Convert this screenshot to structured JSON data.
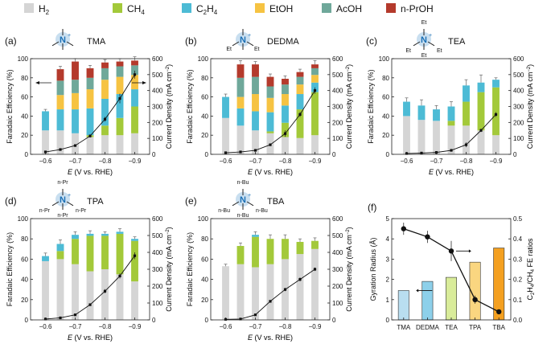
{
  "legend": [
    {
      "key": "h2",
      "main": "H",
      "sub": "2",
      "tail": "",
      "color": "#d5d5d5"
    },
    {
      "key": "ch4",
      "main": "CH",
      "sub": "4",
      "tail": "",
      "color": "#a3c93a"
    },
    {
      "key": "c2h4",
      "main": "C",
      "sub": "2",
      "tail": "H",
      "sub2": "4",
      "color": "#4dbbd5"
    },
    {
      "key": "etoh",
      "main": "EtOH",
      "sub": "",
      "tail": "",
      "color": "#f6c342"
    },
    {
      "key": "acoh",
      "main": "AcOH",
      "sub": "",
      "tail": "",
      "color": "#6fa89a"
    },
    {
      "key": "nproh",
      "main": "n-PrOH",
      "sub": "",
      "tail": "",
      "color": "#b43a2c"
    }
  ],
  "axis_text": {
    "fe_label": "Faradaic Efficiency (%)",
    "cd_label_main": "Current Density (mA cm",
    "cd_label_sup": "−2",
    "cd_label_end": ")",
    "x_label_e": "E",
    "x_label_rest": " (V vs. RHE)",
    "fe_ticks": [
      "0",
      "20",
      "40",
      "60",
      "80",
      "100"
    ],
    "cd_ticks": [
      "0",
      "100",
      "200",
      "300",
      "400",
      "500",
      "600"
    ],
    "x_ticks": [
      "−0.6",
      "−0.7",
      "−0.8",
      "−0.9"
    ]
  },
  "chart_data": [
    {
      "type": "bar",
      "panel": "(a)",
      "name": "TMA",
      "molecule": {
        "center": "N",
        "charge": "+",
        "subs": []
      },
      "x": [
        -0.6,
        -0.65,
        -0.7,
        -0.75,
        -0.8,
        -0.85,
        -0.9
      ],
      "series": {
        "h2": [
          25,
          25,
          22,
          18,
          20,
          20,
          22
        ],
        "ch4": [
          0,
          0,
          0,
          2,
          10,
          18,
          28
        ],
        "c2h4": [
          20,
          22,
          25,
          28,
          28,
          25,
          18
        ],
        "etoh": [
          0,
          15,
          17,
          20,
          20,
          18,
          15
        ],
        "acoh": [
          0,
          15,
          14,
          12,
          12,
          11,
          10
        ],
        "nproh": [
          0,
          12,
          19,
          10,
          6,
          5,
          5
        ]
      },
      "fe_err": [
        2,
        3,
        3,
        3,
        3,
        3,
        4
      ],
      "current_density": [
        15,
        30,
        55,
        115,
        220,
        350,
        500
      ],
      "cd_err": [
        3,
        5,
        6,
        10,
        15,
        30,
        25
      ],
      "ylim_fe": [
        0,
        100
      ],
      "ylim_cd": [
        0,
        600
      ],
      "xlim": [
        -0.55,
        -0.95
      ],
      "arrows": true
    },
    {
      "type": "bar",
      "panel": "(b)",
      "name": "DEDMA",
      "molecule": {
        "center": "N",
        "charge": "+",
        "subs": [
          "Et",
          "Et"
        ]
      },
      "x": [
        -0.6,
        -0.65,
        -0.7,
        -0.75,
        -0.8,
        -0.85,
        -0.9
      ],
      "series": {
        "h2": [
          38,
          30,
          25,
          22,
          18,
          17,
          20
        ],
        "ch4": [
          0,
          0,
          0,
          2,
          15,
          30,
          45
        ],
        "c2h4": [
          22,
          18,
          20,
          20,
          18,
          16,
          10
        ],
        "etoh": [
          0,
          12,
          18,
          15,
          12,
          10,
          8
        ],
        "acoh": [
          0,
          20,
          18,
          12,
          10,
          8,
          7
        ],
        "nproh": [
          0,
          14,
          13,
          10,
          6,
          5,
          4
        ]
      },
      "fe_err": [
        3,
        4,
        3,
        3,
        3,
        3,
        4
      ],
      "current_density": [
        10,
        15,
        25,
        60,
        130,
        250,
        400
      ],
      "cd_err": [
        2,
        3,
        4,
        8,
        20,
        15,
        20
      ],
      "ylim_fe": [
        0,
        100
      ],
      "ylim_cd": [
        0,
        600
      ],
      "xlim": [
        -0.55,
        -0.95
      ],
      "arrows": false
    },
    {
      "type": "bar",
      "panel": "(c)",
      "name": "TEA",
      "molecule": {
        "center": "N",
        "charge": "+",
        "subs": [
          "Et",
          "Et",
          "Et",
          "Et"
        ]
      },
      "x": [
        -0.6,
        -0.65,
        -0.7,
        -0.75,
        -0.8,
        -0.85,
        -0.9
      ],
      "series": {
        "h2": [
          40,
          36,
          35,
          30,
          30,
          25,
          20
        ],
        "ch4": [
          0,
          0,
          0,
          5,
          25,
          40,
          50
        ],
        "c2h4": [
          15,
          15,
          12,
          15,
          17,
          10,
          8
        ],
        "etoh": [
          0,
          0,
          0,
          0,
          0,
          0,
          0
        ],
        "acoh": [
          0,
          0,
          0,
          0,
          0,
          0,
          0
        ],
        "nproh": [
          0,
          0,
          0,
          0,
          0,
          0,
          0
        ]
      },
      "fe_err": [
        4,
        6,
        4,
        5,
        6,
        8,
        2
      ],
      "current_density": [
        5,
        8,
        12,
        25,
        60,
        150,
        250
      ],
      "cd_err": [
        2,
        2,
        3,
        5,
        15,
        10,
        15
      ],
      "ylim_fe": [
        0,
        100
      ],
      "ylim_cd": [
        0,
        600
      ],
      "xlim": [
        -0.55,
        -0.95
      ],
      "arrows": false
    },
    {
      "type": "bar",
      "panel": "(d)",
      "name": "TPA",
      "molecule": {
        "center": "N",
        "charge": "+",
        "subs": [
          "n-Pr",
          "n-Pr",
          "n-Pr",
          "n-Pr"
        ]
      },
      "x": [
        -0.6,
        -0.65,
        -0.7,
        -0.75,
        -0.8,
        -0.85,
        -0.9
      ],
      "series": {
        "h2": [
          58,
          60,
          55,
          48,
          50,
          45,
          38
        ],
        "ch4": [
          0,
          8,
          25,
          35,
          33,
          40,
          40
        ],
        "c2h4": [
          5,
          7,
          4,
          2,
          2,
          2,
          2
        ],
        "etoh": [
          0,
          0,
          0,
          0,
          0,
          0,
          0
        ],
        "acoh": [
          0,
          0,
          0,
          0,
          0,
          0,
          0
        ],
        "nproh": [
          0,
          0,
          0,
          0,
          0,
          0,
          0
        ]
      },
      "fe_err": [
        3,
        4,
        3,
        3,
        2,
        3,
        2
      ],
      "current_density": [
        5,
        12,
        30,
        90,
        170,
        260,
        380
      ],
      "cd_err": [
        2,
        3,
        5,
        8,
        12,
        15,
        20
      ],
      "ylim_fe": [
        0,
        100
      ],
      "ylim_cd": [
        0,
        600
      ],
      "xlim": [
        -0.55,
        -0.95
      ],
      "arrows": false
    },
    {
      "type": "bar",
      "panel": "(e)",
      "name": "TBA",
      "molecule": {
        "center": "N",
        "charge": "+",
        "subs": [
          "n-Bu",
          "n-Bu",
          "n-Bu",
          "n-Bu"
        ]
      },
      "x": [
        -0.6,
        -0.65,
        -0.7,
        -0.75,
        -0.8,
        -0.85,
        -0.9
      ],
      "series": {
        "h2": [
          53,
          55,
          52,
          55,
          60,
          65,
          70
        ],
        "ch4": [
          0,
          18,
          30,
          25,
          20,
          12,
          8
        ],
        "c2h4": [
          0,
          0,
          2,
          0,
          0,
          0,
          0
        ],
        "etoh": [
          0,
          0,
          0,
          0,
          0,
          0,
          0
        ],
        "acoh": [
          0,
          0,
          0,
          0,
          0,
          0,
          0
        ],
        "nproh": [
          0,
          0,
          0,
          0,
          0,
          0,
          0
        ]
      },
      "fe_err": [
        2,
        3,
        3,
        4,
        4,
        3,
        3
      ],
      "current_density": [
        3,
        5,
        30,
        110,
        180,
        240,
        300
      ],
      "cd_err": [
        1,
        2,
        5,
        8,
        10,
        12,
        10
      ],
      "ylim_fe": [
        0,
        100
      ],
      "ylim_cd": [
        0,
        600
      ],
      "xlim": [
        -0.55,
        -0.95
      ],
      "arrows": false
    },
    {
      "type": "bar+line",
      "panel": "(f)",
      "categories": [
        "TMA",
        "DEDMA",
        "TEA",
        "TPA",
        "TBA"
      ],
      "bar_values": [
        1.45,
        1.9,
        2.1,
        2.85,
        3.55
      ],
      "bar_colors": [
        "#b9def0",
        "#8dd0ea",
        "#d9ec9a",
        "#fad680",
        "#f4a020"
      ],
      "line_values": [
        0.45,
        0.41,
        0.34,
        0.1,
        0.04
      ],
      "line_err": [
        0.03,
        0.03,
        0.05,
        0.02,
        0.005
      ],
      "ylabel": "Gyration Radius (Å)",
      "y2label_parts": [
        "C",
        "2",
        "H",
        "4",
        "/CH",
        "4",
        " FE ratios"
      ],
      "ylim": [
        0,
        5
      ],
      "y2lim": [
        0,
        0.5
      ],
      "yticks": [
        "0",
        "1",
        "2",
        "3",
        "4",
        "5"
      ],
      "y2ticks": [
        "0.0",
        "0.1",
        "0.2",
        "0.3",
        "0.4",
        "0.5"
      ]
    }
  ]
}
